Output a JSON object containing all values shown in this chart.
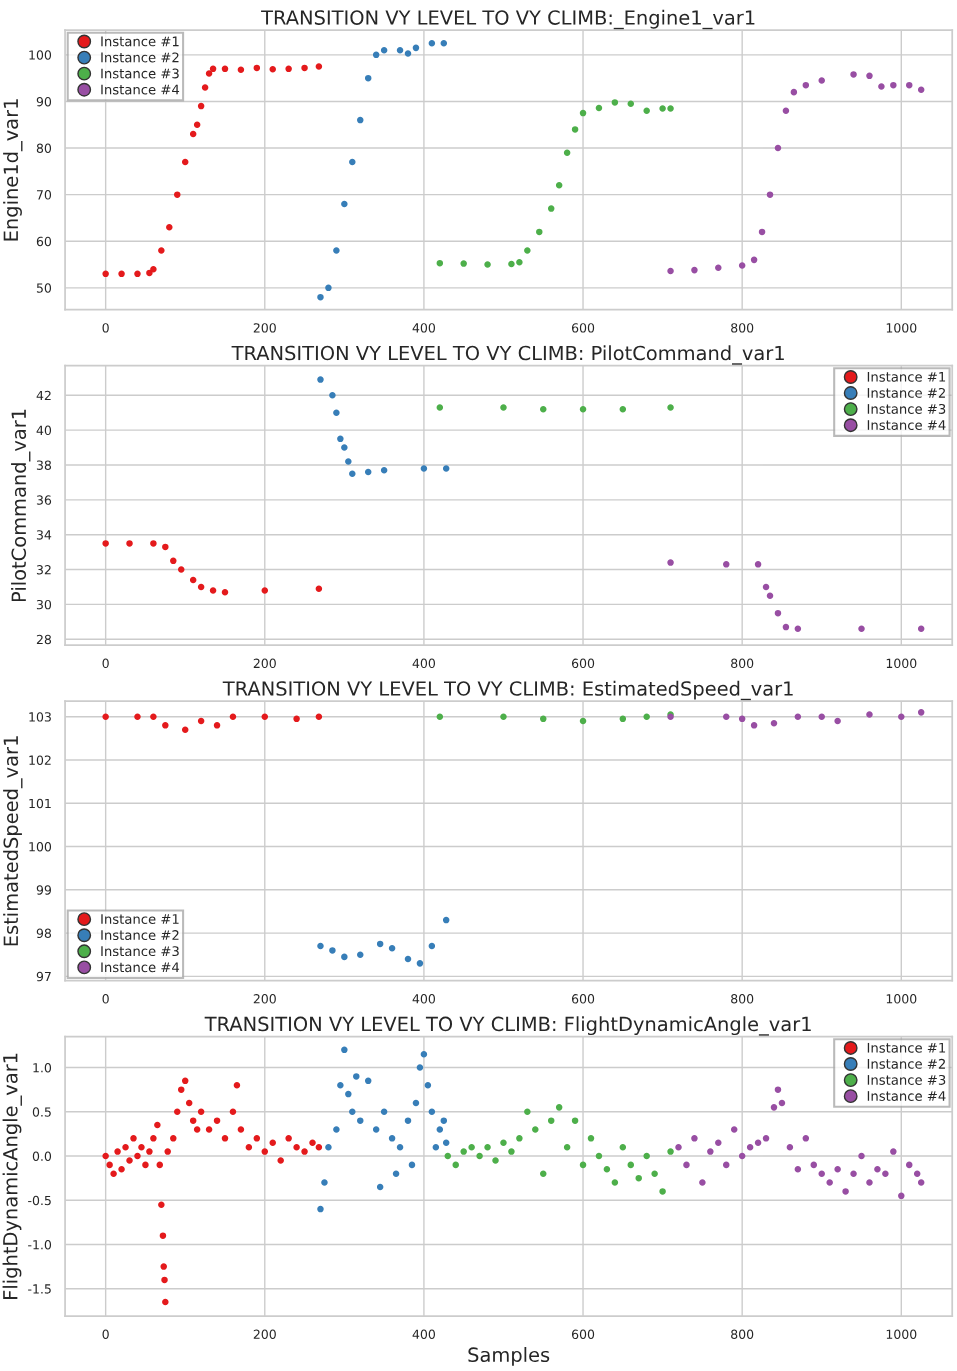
{
  "chart_data": [
    {
      "type": "scatter",
      "title": "TRANSITION VY LEVEL TO VY CLIMB:_Engine1_var1",
      "ylabel": "Engine1d_var1",
      "xlim": [
        -51,
        1064
      ],
      "ylim": [
        45.3,
        105.3
      ],
      "xticks": [
        0,
        200,
        400,
        600,
        800,
        1000
      ],
      "yticks": [
        50,
        60,
        70,
        80,
        90,
        100
      ],
      "grid": true,
      "legend": "top left",
      "marker": "circle",
      "series": [
        {
          "name": "Instance #1",
          "color": "#e41a1c",
          "x": [
            0,
            20,
            40,
            55,
            60,
            70,
            80,
            90,
            100,
            110,
            115,
            120,
            125,
            130,
            135,
            150,
            170,
            190,
            210,
            230,
            250,
            268
          ],
          "values": [
            53,
            53,
            53,
            53.2,
            54,
            58,
            63,
            70,
            77,
            83,
            85,
            89,
            93,
            96,
            97,
            97,
            96.8,
            97.2,
            96.9,
            97,
            97.2,
            97.5
          ]
        },
        {
          "name": "Instance #2",
          "color": "#377eb8",
          "x": [
            270,
            280,
            290,
            300,
            310,
            320,
            330,
            340,
            350,
            370,
            380,
            390,
            410,
            425
          ],
          "values": [
            48,
            50,
            58,
            68,
            77,
            86,
            95,
            100,
            101,
            101,
            100.3,
            101.5,
            102.5,
            102.5
          ]
        },
        {
          "name": "Instance #3",
          "color": "#4daf4a",
          "x": [
            420,
            450,
            480,
            510,
            520,
            530,
            545,
            560,
            570,
            580,
            590,
            600,
            620,
            640,
            660,
            680,
            700,
            710
          ],
          "values": [
            55.3,
            55.2,
            55,
            55.1,
            55.5,
            58,
            62,
            67,
            72,
            79,
            84,
            87.5,
            88.6,
            89.8,
            89.5,
            88,
            88.5,
            88.5
          ]
        },
        {
          "name": "Instance #4",
          "color": "#984ea3",
          "x": [
            710,
            740,
            770,
            800,
            815,
            825,
            835,
            845,
            855,
            865,
            880,
            900,
            940,
            960,
            975,
            990,
            1010,
            1025
          ],
          "values": [
            53.6,
            53.8,
            54.3,
            54.8,
            56,
            62,
            70,
            80,
            88,
            92,
            93.5,
            94.5,
            95.8,
            95.5,
            93.2,
            93.5,
            93.5,
            92.5
          ]
        }
      ]
    },
    {
      "type": "scatter",
      "title": "TRANSITION VY LEVEL TO VY CLIMB: PilotCommand_var1",
      "ylabel": "PilotCommand_var1",
      "xlim": [
        -51,
        1064
      ],
      "ylim": [
        27.66,
        43.7
      ],
      "xticks": [
        0,
        200,
        400,
        600,
        800,
        1000
      ],
      "yticks": [
        28,
        30,
        32,
        34,
        36,
        38,
        40,
        42
      ],
      "grid": true,
      "legend": "top right",
      "marker": "circle",
      "series": [
        {
          "name": "Instance #1",
          "color": "#e41a1c",
          "x": [
            0,
            30,
            60,
            75,
            85,
            95,
            110,
            120,
            135,
            150,
            200,
            268
          ],
          "values": [
            33.5,
            33.5,
            33.5,
            33.3,
            32.5,
            32,
            31.4,
            31,
            30.8,
            30.7,
            30.8,
            30.9
          ]
        },
        {
          "name": "Instance #2",
          "color": "#377eb8",
          "x": [
            270,
            285,
            290,
            295,
            300,
            305,
            310,
            330,
            350,
            400,
            428
          ],
          "values": [
            42.9,
            42,
            41,
            39.5,
            39,
            38.2,
            37.5,
            37.6,
            37.7,
            37.8,
            37.8
          ]
        },
        {
          "name": "Instance #3",
          "color": "#4daf4a",
          "x": [
            420,
            500,
            550,
            600,
            650,
            710
          ],
          "values": [
            41.3,
            41.3,
            41.2,
            41.2,
            41.2,
            41.3
          ]
        },
        {
          "name": "Instance #4",
          "color": "#984ea3",
          "x": [
            710,
            780,
            820,
            830,
            835,
            845,
            855,
            870,
            950,
            1025
          ],
          "values": [
            32.4,
            32.3,
            32.3,
            31,
            30.5,
            29.5,
            28.7,
            28.6,
            28.6,
            28.6
          ]
        }
      ]
    },
    {
      "type": "scatter",
      "title": "TRANSITION VY LEVEL TO VY CLIMB: EstimatedSpeed_var1",
      "ylabel": "EstimatedSpeed_var1",
      "xlim": [
        -51,
        1064
      ],
      "ylim": [
        96.9,
        103.36
      ],
      "xticks": [
        0,
        200,
        400,
        600,
        800,
        1000
      ],
      "yticks": [
        97,
        98,
        99,
        100,
        101,
        102,
        103
      ],
      "grid": true,
      "legend": "bottom left",
      "marker": "circle",
      "series": [
        {
          "name": "Instance #1",
          "color": "#e41a1c",
          "x": [
            0,
            40,
            60,
            75,
            100,
            120,
            140,
            160,
            200,
            240,
            268
          ],
          "values": [
            103,
            103,
            103,
            102.8,
            102.7,
            102.9,
            102.8,
            103,
            103,
            102.95,
            103
          ]
        },
        {
          "name": "Instance #2",
          "color": "#377eb8",
          "x": [
            270,
            285,
            300,
            320,
            345,
            360,
            380,
            395,
            410,
            428
          ],
          "values": [
            97.7,
            97.6,
            97.45,
            97.5,
            97.75,
            97.65,
            97.4,
            97.3,
            97.7,
            98.3
          ]
        },
        {
          "name": "Instance #3",
          "color": "#4daf4a",
          "x": [
            420,
            500,
            550,
            600,
            650,
            680,
            710
          ],
          "values": [
            103,
            103,
            102.95,
            102.9,
            102.95,
            103,
            103.05
          ]
        },
        {
          "name": "Instance #4",
          "color": "#984ea3",
          "x": [
            710,
            780,
            800,
            815,
            840,
            870,
            900,
            920,
            960,
            1000,
            1025
          ],
          "values": [
            103,
            103,
            102.95,
            102.8,
            102.85,
            103,
            103,
            102.9,
            103.05,
            103,
            103.1
          ]
        }
      ]
    },
    {
      "type": "scatter",
      "title": "TRANSITION VY LEVEL TO VY CLIMB: FlightDynamicAngle_var1",
      "xlabel": "Samples",
      "ylabel": "FlightDynamicAngle_var1",
      "xlim": [
        -51,
        1064
      ],
      "ylim": [
        -1.81,
        1.35
      ],
      "xticks": [
        0,
        200,
        400,
        600,
        800,
        1000
      ],
      "yticks": [
        {
          "value": -1.5,
          "label": "-1.5"
        },
        {
          "value": -1.0,
          "label": "-1.0"
        },
        {
          "value": -0.5,
          "label": "-0.5"
        },
        {
          "value": 0.0,
          "label": "0.0"
        },
        {
          "value": 0.5,
          "label": "0.5"
        },
        {
          "value": 1.0,
          "label": "1.0"
        }
      ],
      "grid": true,
      "legend": "top right",
      "marker": "circle",
      "series": [
        {
          "name": "Instance #1",
          "color": "#e41a1c",
          "x": [
            0,
            5,
            10,
            15,
            20,
            25,
            30,
            35,
            40,
            45,
            50,
            55,
            60,
            65,
            68,
            70,
            72,
            73,
            74,
            75,
            78,
            85,
            90,
            95,
            100,
            105,
            110,
            115,
            120,
            130,
            140,
            150,
            160,
            165,
            170,
            180,
            190,
            200,
            210,
            220,
            230,
            240,
            250,
            260,
            268
          ],
          "values": [
            0,
            -0.1,
            -0.2,
            0.05,
            -0.15,
            0.1,
            -0.05,
            0.2,
            0,
            0.1,
            -0.1,
            0.05,
            0.2,
            0.35,
            -0.1,
            -0.55,
            -0.9,
            -1.25,
            -1.4,
            -1.65,
            0.05,
            0.2,
            0.5,
            0.75,
            0.85,
            0.6,
            0.4,
            0.3,
            0.5,
            0.3,
            0.4,
            0.2,
            0.5,
            0.8,
            0.3,
            0.1,
            0.2,
            0.05,
            0.15,
            -0.05,
            0.2,
            0.1,
            0.05,
            0.15,
            0.1
          ]
        },
        {
          "name": "Instance #2",
          "color": "#377eb8",
          "x": [
            270,
            275,
            280,
            290,
            295,
            300,
            305,
            310,
            315,
            320,
            330,
            340,
            345,
            350,
            360,
            365,
            370,
            380,
            385,
            390,
            395,
            400,
            405,
            410,
            415,
            420,
            425,
            428
          ],
          "values": [
            -0.6,
            -0.3,
            0.1,
            0.3,
            0.8,
            1.2,
            0.7,
            0.5,
            0.9,
            0.4,
            0.85,
            0.3,
            -0.35,
            0.5,
            0.2,
            -0.2,
            0.1,
            0.4,
            -0.1,
            0.6,
            1.0,
            1.15,
            0.8,
            0.5,
            0.1,
            0.3,
            0.4,
            0.15
          ]
        },
        {
          "name": "Instance #3",
          "color": "#4daf4a",
          "x": [
            430,
            440,
            450,
            460,
            470,
            480,
            490,
            500,
            510,
            520,
            530,
            540,
            550,
            560,
            570,
            580,
            590,
            600,
            610,
            620,
            630,
            640,
            650,
            660,
            670,
            680,
            690,
            700,
            710
          ],
          "values": [
            0,
            -0.1,
            0.05,
            0.1,
            0,
            0.1,
            -0.05,
            0.15,
            0.05,
            0.2,
            0.5,
            0.3,
            -0.2,
            0.4,
            0.55,
            0.1,
            0.4,
            -0.1,
            0.2,
            0,
            -0.15,
            -0.3,
            0.1,
            -0.1,
            -0.25,
            0,
            -0.2,
            -0.4,
            0.05
          ]
        },
        {
          "name": "Instance #4",
          "color": "#984ea3",
          "x": [
            720,
            730,
            740,
            750,
            760,
            770,
            780,
            790,
            800,
            810,
            820,
            830,
            840,
            845,
            850,
            860,
            870,
            880,
            890,
            900,
            910,
            920,
            930,
            940,
            950,
            960,
            970,
            980,
            990,
            1000,
            1010,
            1020,
            1025
          ],
          "values": [
            0.1,
            -0.1,
            0.2,
            -0.3,
            0.05,
            0.15,
            -0.1,
            0.3,
            0,
            0.1,
            0.15,
            0.2,
            0.55,
            0.75,
            0.6,
            0.1,
            -0.15,
            0.2,
            -0.1,
            -0.2,
            -0.3,
            -0.15,
            -0.4,
            -0.2,
            0,
            -0.3,
            -0.15,
            -0.2,
            0.05,
            -0.45,
            -0.1,
            -0.2,
            -0.3
          ]
        }
      ]
    }
  ]
}
